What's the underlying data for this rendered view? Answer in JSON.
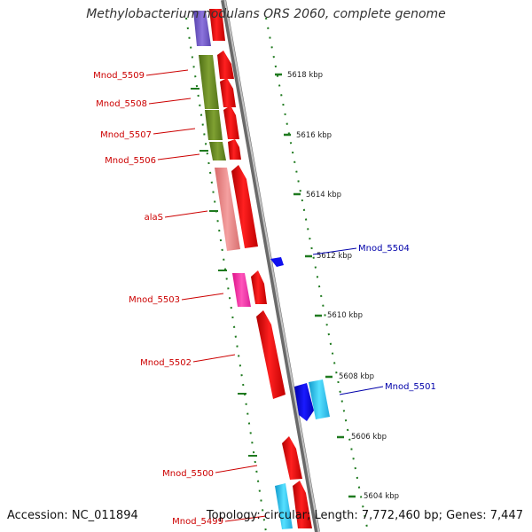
{
  "title": "Methylobacterium nodulans ORS 2060, complete genome",
  "accession": "Accession: NC_011894",
  "topology": "Topology: circular; Length: 7,772,460 bp; Genes: 7,447",
  "colors": {
    "forward_gene": "#ff0000",
    "forward_gene_light": "#f08080",
    "magenta_gene": "#ff33aa",
    "reverse_gene_blue": "#0000ee",
    "reverse_gene_cyan": "#22ccee",
    "olive_feature": "#6b8e23",
    "violet_feature": "#7a5cc8",
    "tick_green": "#1f7a1f",
    "forward_label": "#cc0000",
    "reverse_label": "#0000aa"
  },
  "scale_labels": [
    "5618 kbp",
    "5616 kbp",
    "5614 kbp",
    "5612 kbp",
    "5610 kbp",
    "5608 kbp",
    "5606 kbp",
    "5604 kbp"
  ],
  "gene_labels": [
    {
      "name": "Mnod_5509",
      "strand": "forward"
    },
    {
      "name": "Mnod_5508",
      "strand": "forward"
    },
    {
      "name": "Mnod_5507",
      "strand": "forward"
    },
    {
      "name": "Mnod_5506",
      "strand": "forward"
    },
    {
      "name": "alaS",
      "strand": "forward"
    },
    {
      "name": "Mnod_5503",
      "strand": "forward"
    },
    {
      "name": "Mnod_5502",
      "strand": "forward"
    },
    {
      "name": "Mnod_5500",
      "strand": "forward"
    },
    {
      "name": "Mnod_5499",
      "strand": "forward"
    },
    {
      "name": "Mnod_5504",
      "strand": "reverse"
    },
    {
      "name": "Mnod_5501",
      "strand": "reverse"
    }
  ]
}
